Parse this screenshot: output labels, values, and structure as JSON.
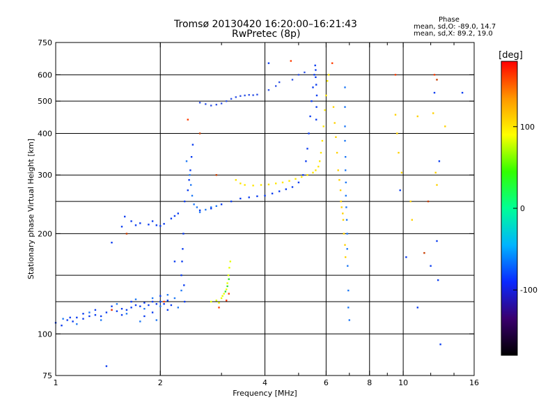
{
  "header": {
    "title_line1": "Tromsø 20130420 16:20:00–16:21:43",
    "title_line2": "RwPretec (8p)"
  },
  "phase_info": {
    "heading": "Phase",
    "line1": "mean, sd,O: -89.0, 14.7",
    "line2": "mean, sd,X:  89.2, 19.0"
  },
  "chart_data": {
    "type": "scatter",
    "xlabel": "Frequency [MHz]",
    "ylabel": "Stationary phase Virtual Height [km]",
    "xscale": "log",
    "yscale": "log",
    "xlim": [
      1,
      16
    ],
    "ylim": [
      75,
      750
    ],
    "xticks": [
      1,
      2,
      4,
      6,
      8,
      10,
      16
    ],
    "xtick_labels": [
      "1",
      "2",
      "4",
      "6",
      "8",
      "10",
      "16"
    ],
    "xminor": [
      3,
      5,
      7,
      9,
      12,
      14
    ],
    "xgrid": [
      2,
      4,
      6,
      8,
      10
    ],
    "yticks": [
      75,
      100,
      200,
      300,
      400,
      500,
      600,
      750
    ],
    "ytick_labels": [
      "75",
      "100",
      "200",
      "300",
      "400",
      "500",
      "600",
      "750"
    ],
    "ygrid": [
      100,
      125,
      150,
      200,
      250,
      300,
      400,
      500,
      600
    ],
    "grid": true,
    "colorbar": {
      "label": "[deg]",
      "range": [
        -180,
        180
      ],
      "ticks": [
        100,
        0,
        -100
      ],
      "tick_labels": [
        "100",
        "0",
        "-100"
      ],
      "colors": [
        "#000000",
        "#3a006e",
        "#0a28ff",
        "#00b4ff",
        "#00ff96",
        "#32ff00",
        "#ffff00",
        "#ff9600",
        "#ff0000"
      ]
    },
    "series": [
      {
        "color": "#0a3cf0",
        "points": [
          [
            1.0,
            108
          ],
          [
            1.04,
            106
          ],
          [
            1.08,
            110
          ],
          [
            1.12,
            109
          ],
          [
            1.15,
            112
          ],
          [
            1.2,
            111
          ],
          [
            1.25,
            113
          ],
          [
            1.3,
            114
          ],
          [
            1.35,
            113
          ],
          [
            1.4,
            116
          ],
          [
            1.45,
            118
          ],
          [
            1.5,
            117
          ],
          [
            1.55,
            119
          ],
          [
            1.6,
            118
          ],
          [
            1.65,
            120
          ],
          [
            1.7,
            122
          ],
          [
            1.75,
            121
          ],
          [
            1.8,
            124
          ],
          [
            1.85,
            122
          ],
          [
            1.9,
            125
          ],
          [
            1.95,
            123
          ],
          [
            2.0,
            125
          ],
          [
            2.05,
            123
          ],
          [
            2.1,
            126
          ],
          [
            2.15,
            122
          ],
          [
            1.1,
            112
          ],
          [
            1.2,
            115
          ],
          [
            1.3,
            118
          ],
          [
            1.45,
            121
          ],
          [
            1.55,
            114
          ],
          [
            1.65,
            125
          ],
          [
            1.8,
            113
          ],
          [
            1.9,
            116
          ],
          [
            2.0,
            130
          ],
          [
            2.1,
            118
          ]
        ]
      },
      {
        "color": "#1e78f5",
        "points": [
          [
            1.05,
            111
          ],
          [
            1.15,
            107
          ],
          [
            1.25,
            116
          ],
          [
            1.35,
            110
          ],
          [
            1.5,
            123
          ],
          [
            1.6,
            115
          ],
          [
            1.7,
            127
          ],
          [
            1.8,
            119
          ],
          [
            1.9,
            128
          ],
          [
            2.0,
            121
          ],
          [
            2.1,
            131
          ],
          [
            2.2,
            128
          ],
          [
            2.25,
            120
          ],
          [
            2.3,
            135
          ],
          [
            1.95,
            110
          ],
          [
            1.75,
            109
          ]
        ]
      },
      {
        "color": "#0a3cf0",
        "points": [
          [
            2.3,
            150
          ],
          [
            2.31,
            165
          ],
          [
            2.32,
            180
          ],
          [
            2.33,
            200
          ],
          [
            2.35,
            125
          ],
          [
            2.34,
            140
          ]
        ]
      },
      {
        "color": "#0a3cf0",
        "points": [
          [
            1.55,
            210
          ],
          [
            1.65,
            218
          ],
          [
            1.75,
            215
          ],
          [
            1.85,
            213
          ],
          [
            1.95,
            212
          ],
          [
            2.05,
            214
          ],
          [
            2.15,
            222
          ],
          [
            2.25,
            230
          ],
          [
            2.35,
            250
          ],
          [
            2.4,
            270
          ],
          [
            2.42,
            290
          ],
          [
            2.44,
            310
          ],
          [
            2.46,
            340
          ],
          [
            2.48,
            370
          ],
          [
            1.58,
            225
          ],
          [
            1.7,
            212
          ],
          [
            1.9,
            218
          ],
          [
            2.0,
            211
          ],
          [
            2.2,
            226
          ]
        ]
      },
      {
        "color": "#1e78f5",
        "points": [
          [
            2.38,
            330
          ],
          [
            2.43,
            300
          ],
          [
            2.45,
            280
          ],
          [
            2.47,
            260
          ],
          [
            2.5,
            245
          ],
          [
            2.55,
            240
          ],
          [
            2.6,
            232
          ],
          [
            2.7,
            236
          ],
          [
            2.8,
            240
          ],
          [
            2.9,
            242
          ]
        ]
      },
      {
        "color": "#0a3cf0",
        "points": [
          [
            2.6,
            235
          ],
          [
            2.8,
            238
          ],
          [
            3.0,
            245
          ],
          [
            3.2,
            250
          ],
          [
            3.4,
            255
          ],
          [
            3.6,
            257
          ],
          [
            3.8,
            259
          ],
          [
            4.0,
            260
          ],
          [
            4.2,
            264
          ],
          [
            4.4,
            268
          ],
          [
            4.6,
            272
          ],
          [
            4.8,
            276
          ],
          [
            5.0,
            285
          ],
          [
            5.15,
            300
          ],
          [
            5.25,
            330
          ],
          [
            5.3,
            360
          ],
          [
            5.35,
            400
          ],
          [
            5.4,
            450
          ],
          [
            5.45,
            500
          ],
          [
            5.5,
            550
          ],
          [
            5.55,
            600
          ],
          [
            5.58,
            640
          ],
          [
            5.6,
            620
          ],
          [
            5.6,
            590
          ],
          [
            5.62,
            560
          ],
          [
            5.64,
            520
          ],
          [
            5.63,
            480
          ],
          [
            5.62,
            440
          ]
        ]
      },
      {
        "color": "#3255e6",
        "points": [
          [
            2.6,
            495
          ],
          [
            2.7,
            490
          ],
          [
            2.8,
            485
          ],
          [
            2.9,
            488
          ],
          [
            3.0,
            492
          ],
          [
            3.1,
            500
          ],
          [
            3.2,
            508
          ],
          [
            3.3,
            514
          ],
          [
            3.4,
            518
          ],
          [
            3.5,
            520
          ],
          [
            3.6,
            522
          ],
          [
            3.7,
            521
          ],
          [
            3.8,
            523
          ],
          [
            4.1,
            540
          ],
          [
            4.3,
            555
          ],
          [
            4.4,
            570
          ],
          [
            4.8,
            580
          ],
          [
            5.0,
            600
          ],
          [
            5.2,
            610
          ]
        ]
      },
      {
        "color": "#ffe600",
        "points": [
          [
            3.3,
            290
          ],
          [
            3.4,
            283
          ],
          [
            3.5,
            280
          ],
          [
            3.7,
            279
          ],
          [
            3.9,
            280
          ],
          [
            4.1,
            281
          ],
          [
            4.3,
            283
          ],
          [
            4.5,
            285
          ],
          [
            4.7,
            288
          ],
          [
            4.9,
            292
          ],
          [
            5.1,
            296
          ],
          [
            5.3,
            300
          ],
          [
            5.5,
            305
          ],
          [
            5.6,
            310
          ],
          [
            5.7,
            318
          ],
          [
            5.75,
            330
          ],
          [
            5.8,
            350
          ],
          [
            5.85,
            380
          ],
          [
            5.9,
            420
          ],
          [
            5.95,
            470
          ],
          [
            6.0,
            520
          ],
          [
            6.05,
            575
          ],
          [
            6.1,
            600
          ]
        ]
      },
      {
        "color": "#e6ff00",
        "points": [
          [
            2.8,
            125
          ],
          [
            2.9,
            126
          ],
          [
            3.0,
            128
          ],
          [
            3.05,
            132
          ],
          [
            3.1,
            136
          ],
          [
            3.12,
            142
          ],
          [
            3.14,
            150
          ],
          [
            3.16,
            158
          ],
          [
            3.18,
            165
          ],
          [
            2.95,
            124
          ],
          [
            3.02,
            130
          ]
        ]
      },
      {
        "color": "#32dc32",
        "points": [
          [
            3.08,
            134
          ],
          [
            3.12,
            139
          ],
          [
            3.15,
            146
          ]
        ]
      },
      {
        "color": "#ffd200",
        "points": [
          [
            6.3,
            480
          ],
          [
            6.35,
            430
          ],
          [
            6.4,
            390
          ],
          [
            6.45,
            350
          ],
          [
            6.5,
            310
          ],
          [
            6.55,
            290
          ],
          [
            6.6,
            270
          ],
          [
            6.62,
            250
          ],
          [
            6.65,
            240
          ],
          [
            6.7,
            230
          ],
          [
            6.72,
            220
          ],
          [
            6.75,
            200
          ],
          [
            6.8,
            185
          ],
          [
            6.82,
            170
          ]
        ]
      },
      {
        "color": "#ff3c00",
        "points": [
          [
            3.1,
            126
          ],
          [
            3.15,
            132
          ],
          [
            2.95,
            120
          ],
          [
            2.05,
            125
          ],
          [
            1.45,
            118
          ],
          [
            2.4,
            440
          ],
          [
            4.75,
            660
          ],
          [
            6.25,
            650
          ],
          [
            9.5,
            600
          ],
          [
            12.3,
            600
          ]
        ]
      },
      {
        "color": "#1e78f5",
        "points": [
          [
            6.8,
            550
          ],
          [
            6.8,
            480
          ],
          [
            6.8,
            420
          ],
          [
            6.8,
            380
          ],
          [
            6.82,
            340
          ],
          [
            6.82,
            310
          ],
          [
            6.84,
            285
          ],
          [
            6.84,
            260
          ],
          [
            6.86,
            240
          ],
          [
            6.88,
            220
          ],
          [
            6.9,
            200
          ],
          [
            6.9,
            180
          ],
          [
            6.92,
            160
          ],
          [
            6.95,
            135
          ],
          [
            6.95,
            120
          ],
          [
            7.0,
            110
          ]
        ]
      },
      {
        "color": "#ffd200",
        "points": [
          [
            9.5,
            455
          ],
          [
            9.6,
            400
          ],
          [
            9.7,
            350
          ],
          [
            9.9,
            305
          ],
          [
            10.5,
            250
          ],
          [
            10.6,
            220
          ],
          [
            11.0,
            450
          ],
          [
            12.4,
            305
          ],
          [
            12.5,
            280
          ],
          [
            12.2,
            460
          ],
          [
            13.2,
            420
          ]
        ]
      },
      {
        "color": "#0a3cf0",
        "points": [
          [
            9.8,
            270
          ],
          [
            10.2,
            170
          ],
          [
            11.0,
            120
          ],
          [
            12.0,
            160
          ],
          [
            12.5,
            190
          ],
          [
            12.6,
            145
          ],
          [
            12.7,
            330
          ],
          [
            12.8,
            93
          ],
          [
            14.8,
            530
          ],
          [
            12.3,
            530
          ],
          [
            4.1,
            650
          ],
          [
            1.4,
            80
          ],
          [
            1.45,
            188
          ],
          [
            2.2,
            165
          ]
        ]
      },
      {
        "color": "#c83c00",
        "points": [
          [
            2.6,
            400
          ],
          [
            2.9,
            300
          ],
          [
            1.6,
            200
          ],
          [
            11.5,
            175
          ],
          [
            12.5,
            580
          ],
          [
            11.8,
            250
          ]
        ]
      }
    ]
  }
}
